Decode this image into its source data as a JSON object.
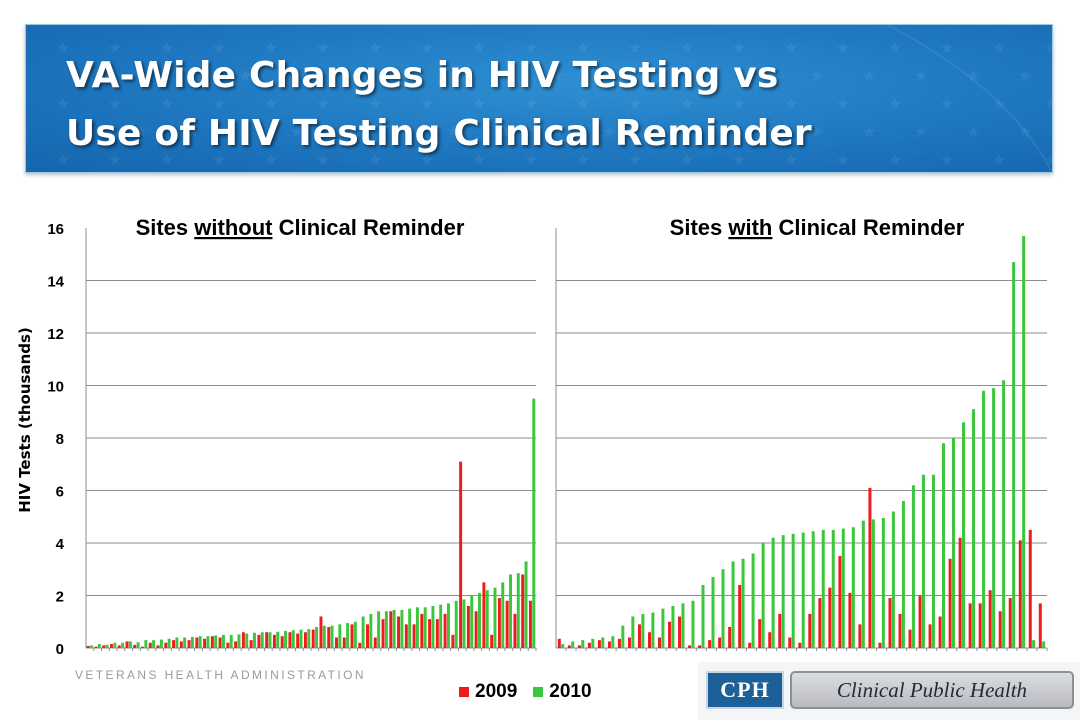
{
  "slide": {
    "title_line1": "VA-Wide Changes in HIV Testing vs",
    "title_line2": "Use of HIV Testing Clinical Reminder",
    "footer": "VETERANS HEALTH ADMINISTRATION",
    "logo_badge": "CPH",
    "logo_name": "Clinical Public Health"
  },
  "colors": {
    "series_2009": "#ee1c1c",
    "series_2010": "#3cc63c",
    "banner": "#1e77c0",
    "gridline": "#8c8c8c"
  },
  "chart_data": {
    "type": "bar",
    "ylabel": "HIV Tests (thousands)",
    "ylim": [
      0,
      16
    ],
    "yticks": [
      0,
      2,
      4,
      6,
      8,
      10,
      12,
      14,
      16
    ],
    "grid": true,
    "legend_position": "bottom",
    "series_names": [
      "2009",
      "2010"
    ],
    "panels": [
      {
        "title_before": "Sites ",
        "title_underlined": "without",
        "title_after": " Clinical Reminder",
        "series": [
          {
            "name": "2009",
            "values": [
              0.08,
              0.05,
              0.1,
              0.15,
              0.1,
              0.25,
              0.12,
              0.05,
              0.2,
              0.1,
              0.2,
              0.3,
              0.25,
              0.3,
              0.4,
              0.35,
              0.45,
              0.4,
              0.2,
              0.25,
              0.6,
              0.3,
              0.5,
              0.6,
              0.5,
              0.45,
              0.6,
              0.55,
              0.6,
              0.7,
              1.2,
              0.8,
              0.4,
              0.4,
              0.9,
              0.2,
              0.9,
              0.4,
              1.1,
              1.4,
              1.2,
              0.9,
              0.9,
              1.3,
              1.1,
              1.1,
              1.3,
              0.5,
              7.1,
              1.6,
              1.4,
              2.5,
              0.5,
              1.9,
              1.8,
              1.3,
              2.8,
              1.8
            ]
          },
          {
            "name": "2010",
            "values": [
              0.1,
              0.15,
              0.12,
              0.2,
              0.2,
              0.25,
              0.22,
              0.3,
              0.3,
              0.32,
              0.35,
              0.4,
              0.4,
              0.42,
              0.45,
              0.45,
              0.48,
              0.5,
              0.5,
              0.52,
              0.55,
              0.58,
              0.6,
              0.6,
              0.62,
              0.65,
              0.68,
              0.7,
              0.72,
              0.8,
              0.85,
              0.85,
              0.9,
              0.95,
              1.0,
              1.2,
              1.3,
              1.4,
              1.4,
              1.45,
              1.45,
              1.5,
              1.55,
              1.55,
              1.6,
              1.65,
              1.7,
              1.8,
              1.85,
              2.0,
              2.1,
              2.2,
              2.3,
              2.5,
              2.8,
              2.85,
              3.3,
              9.5
            ]
          }
        ]
      },
      {
        "title_before": "Sites ",
        "title_underlined": "with",
        "title_after": " Clinical Reminder",
        "series": [
          {
            "name": "2009",
            "values": [
              0.35,
              0.1,
              0.1,
              0.2,
              0.3,
              0.25,
              0.35,
              0.4,
              0.9,
              0.6,
              0.4,
              1.0,
              1.2,
              0.1,
              0.1,
              0.3,
              0.4,
              0.8,
              2.4,
              0.2,
              1.1,
              0.6,
              1.3,
              0.4,
              0.2,
              1.3,
              1.9,
              2.3,
              3.5,
              2.1,
              0.9,
              6.1,
              0.2,
              1.9,
              1.3,
              0.7,
              2.0,
              0.9,
              1.2,
              3.4,
              4.2,
              1.7,
              1.7,
              2.2,
              1.4,
              1.9,
              4.1,
              4.5,
              1.7
            ]
          },
          {
            "name": "2010",
            "values": [
              0.15,
              0.25,
              0.3,
              0.35,
              0.4,
              0.45,
              0.85,
              1.2,
              1.3,
              1.35,
              1.5,
              1.6,
              1.7,
              1.8,
              2.4,
              2.7,
              3.0,
              3.3,
              3.4,
              3.6,
              4.0,
              4.2,
              4.3,
              4.35,
              4.4,
              4.45,
              4.5,
              4.5,
              4.55,
              4.6,
              4.85,
              4.9,
              4.95,
              5.2,
              5.6,
              6.2,
              6.6,
              6.6,
              7.8,
              8.0,
              8.6,
              9.1,
              9.8,
              9.9,
              10.2,
              14.7,
              15.7,
              0.3,
              0.25
            ]
          }
        ]
      }
    ]
  }
}
